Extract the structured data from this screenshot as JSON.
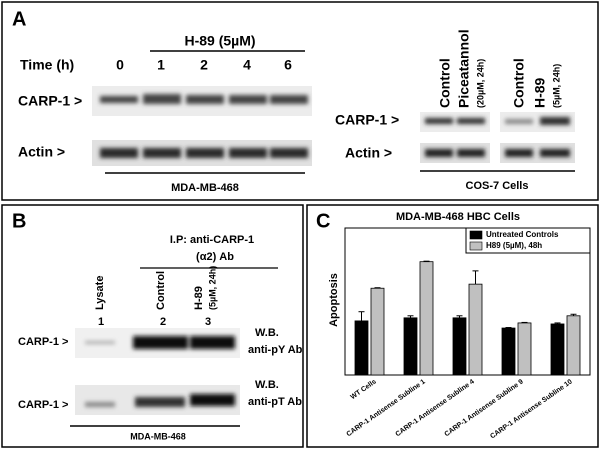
{
  "panel_a": {
    "letter": "A",
    "treatment": "H-89 (5µM)",
    "time_label": "Time (h)",
    "times": [
      "0",
      "1",
      "2",
      "4",
      "6"
    ],
    "left_rows": [
      "CARP-1 >",
      "Actin >"
    ],
    "left_cells": "MDA-MB-468",
    "right_lanes": [
      "Control",
      "Piceatannol",
      "(20µM, 24h)",
      "Control",
      "H-89",
      "(5µM, 24h)"
    ],
    "right_rows": [
      "CARP-1 >",
      "Actin >"
    ],
    "right_cells": "COS-7 Cells"
  },
  "panel_b": {
    "letter": "B",
    "ip": "I.P: anti-CARP-1",
    "ip_ab": "(α2) Ab",
    "lanes": [
      "Lysate",
      "Control",
      "H-89",
      "(5µM, 24h)"
    ],
    "numbers": [
      "1",
      "2",
      "3"
    ],
    "rows": [
      {
        "label": "CARP-1 >",
        "wb": "W.B.",
        "antibody": "anti-pY Ab"
      },
      {
        "label": "CARP-1 >",
        "wb": "W.B.",
        "antibody": "anti-pT Ab"
      }
    ],
    "cells": "MDA-MB-468"
  },
  "panel_c": {
    "letter": "C"
  },
  "chart_data": {
    "type": "bar",
    "title": "MDA-MB-468 HBC Cells",
    "y_label": "Apoptosis",
    "categories": [
      "WT Cells",
      "CARP-1 Antisense Subline 1",
      "CARP-1 Antisense Subline 4",
      "CARP-1 Antisense Subline 9",
      "CARP-1 Antisense Subline 10"
    ],
    "series": [
      {
        "name": "Untreated Controls",
        "color": "#000000",
        "values": [
          5.3,
          5.6,
          5.6,
          4.6,
          5.0
        ],
        "errors": [
          0.9,
          0.2,
          0.2,
          0.05,
          0.1
        ]
      },
      {
        "name": "H89 (5µM), 48h",
        "color": "#c0c0c0",
        "values": [
          8.5,
          11.1,
          8.9,
          5.1,
          5.8
        ],
        "errors": [
          0.05,
          0.05,
          1.3,
          0.05,
          0.15
        ]
      }
    ],
    "ylim": [
      0,
      14.4
    ]
  }
}
